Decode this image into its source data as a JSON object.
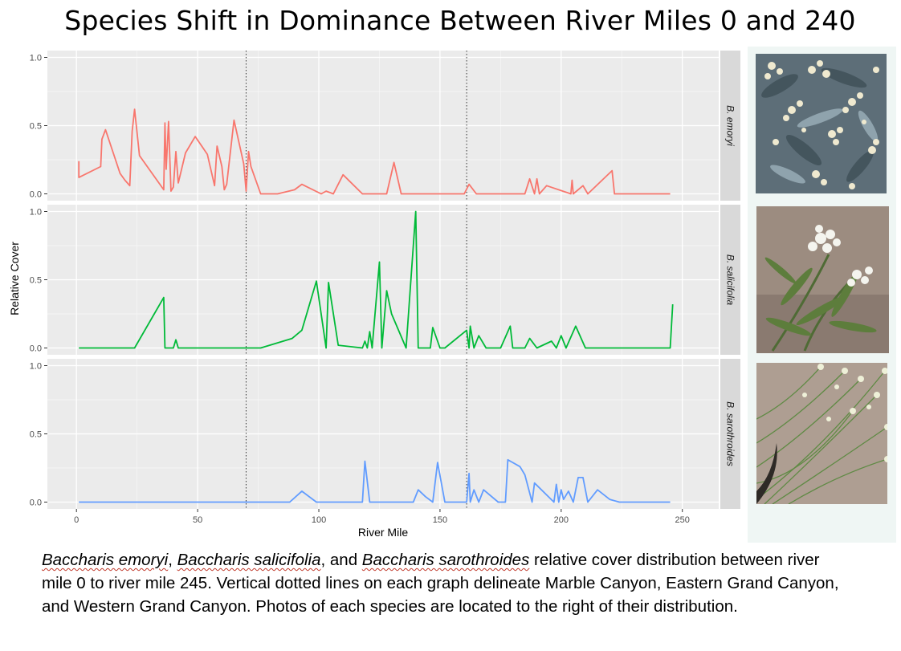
{
  "title": "Species Shift in Dominance Between River Miles 0 and 240",
  "chart_data": {
    "type": "line",
    "facet": "vertical",
    "xlabel": "River Mile",
    "ylabel": "Relative Cover",
    "xlim": [
      -12,
      265
    ],
    "ylim": [
      -0.05,
      1.05
    ],
    "xticks": [
      "0",
      "50",
      "100",
      "150",
      "200",
      "250"
    ],
    "yticks": [
      "0.0",
      "0.5",
      "1.0"
    ],
    "grid": true,
    "vlines": [
      70,
      161
    ],
    "panel_background": "#ebebeb",
    "strip_background": "#d9d9d9",
    "series": [
      {
        "name": "B. emoryi",
        "color": "#f8766d",
        "x": [
          1,
          1,
          10,
          10.5,
          12,
          18,
          20,
          22,
          23,
          24,
          26,
          36,
          36.5,
          37,
          38,
          39,
          40,
          41,
          42,
          45,
          49,
          54,
          57,
          58,
          60,
          61,
          62,
          65,
          69,
          70,
          71,
          72,
          76,
          83,
          90,
          93,
          101,
          103,
          106,
          110,
          118,
          128,
          131,
          134,
          160,
          162,
          165,
          185,
          187,
          189,
          190,
          191,
          194,
          204,
          204.5,
          205,
          209,
          211,
          221,
          222,
          226,
          245
        ],
        "y": [
          0.24,
          0.12,
          0.2,
          0.4,
          0.47,
          0.15,
          0.1,
          0.06,
          0.46,
          0.62,
          0.28,
          0.03,
          0.52,
          0.18,
          0.53,
          0.02,
          0.05,
          0.31,
          0.08,
          0.3,
          0.42,
          0.29,
          0.06,
          0.35,
          0.2,
          0.03,
          0.07,
          0.54,
          0.22,
          0.02,
          0.31,
          0.2,
          0.0,
          0.0,
          0.03,
          0.07,
          0.0,
          0.02,
          0.0,
          0.14,
          0.0,
          0.0,
          0.23,
          0.0,
          0.0,
          0.07,
          0.0,
          0.0,
          0.11,
          0.0,
          0.11,
          0.0,
          0.06,
          0.0,
          0.1,
          0.0,
          0.06,
          0.0,
          0.17,
          0.0,
          0.0,
          0.0
        ]
      },
      {
        "name": "B. salicifolia",
        "color": "#00ba38",
        "x": [
          1,
          24,
          36,
          36.5,
          40,
          41,
          42,
          70,
          76,
          89,
          93,
          99,
          103,
          104,
          108,
          118,
          119,
          120,
          121,
          122,
          125,
          126,
          128,
          130,
          136,
          140,
          141,
          146,
          147,
          150,
          152,
          161,
          162,
          162.5,
          164,
          166,
          169,
          175,
          179,
          180,
          185,
          187,
          190,
          196,
          198,
          200,
          202,
          206,
          210,
          245,
          246
        ],
        "y": [
          0.0,
          0.0,
          0.37,
          0.0,
          0.0,
          0.06,
          0.0,
          0.0,
          0.0,
          0.07,
          0.13,
          0.49,
          0.0,
          0.48,
          0.02,
          0.0,
          0.05,
          0.0,
          0.12,
          0.0,
          0.63,
          0.0,
          0.42,
          0.25,
          0.0,
          1.0,
          0.0,
          0.0,
          0.15,
          0.0,
          0.0,
          0.13,
          0.0,
          0.16,
          0.0,
          0.09,
          0.0,
          0.0,
          0.16,
          0.0,
          0.0,
          0.07,
          0.0,
          0.05,
          0.0,
          0.09,
          0.0,
          0.16,
          0.0,
          0.0,
          0.32
        ]
      },
      {
        "name": "B. sarothroides",
        "color": "#619cff",
        "x": [
          1,
          88,
          93,
          99,
          118,
          119,
          121,
          139,
          141,
          144,
          147,
          149,
          152,
          161,
          162,
          162.5,
          164,
          166,
          168,
          174,
          177,
          178,
          183,
          185,
          188,
          189,
          197,
          198,
          199,
          200,
          201,
          203,
          205,
          207,
          209,
          211,
          215,
          220,
          224,
          245
        ],
        "y": [
          0.0,
          0.0,
          0.08,
          0.0,
          0.0,
          0.3,
          0.0,
          0.0,
          0.09,
          0.04,
          0.0,
          0.29,
          0.0,
          0.0,
          0.21,
          0.0,
          0.09,
          0.0,
          0.09,
          0.0,
          0.0,
          0.31,
          0.26,
          0.2,
          0.0,
          0.14,
          0.0,
          0.13,
          0.0,
          0.09,
          0.02,
          0.08,
          0.0,
          0.18,
          0.18,
          0.0,
          0.09,
          0.02,
          0.0,
          0.0
        ]
      }
    ]
  },
  "caption": {
    "species1": "Baccharis emoryi",
    "species2": "Baccharis salicifolia",
    "species3": "Baccharis sarothroides",
    "text_a": ", ",
    "text_b": ", and ",
    "text_c": " relative cover distribution between river mile 0 to river mile 245. Vertical dotted lines on each graph delineate Marble Canyon, Eastern Grand Canyon, and Western Grand Canyon. Photos of each species are located to the right of their distribution."
  }
}
